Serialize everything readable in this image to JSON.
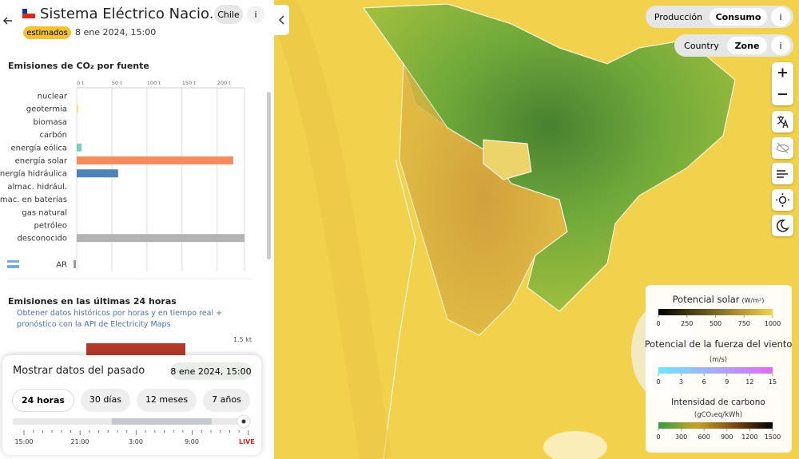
{
  "header": {
    "title": "Sistema Eléctrico Nacio...",
    "country": "Chile",
    "info": "i",
    "badge": "estimados",
    "datetime": "8 ene 2024, 15:00"
  },
  "emissions_chart": {
    "type": "bar",
    "orientation": "horizontal",
    "title": "Emisiones de CO₂ por fuente",
    "categories": [
      "nuclear",
      "geotermia",
      "biomasa",
      "carbón",
      "energía eólica",
      "energía solar",
      "energía hidráulica",
      "almac. hidrául.",
      "almac. en baterías",
      "gas natural",
      "petróleo",
      "desconocido",
      "AR"
    ],
    "values": [
      null,
      2,
      null,
      null,
      7,
      223,
      59,
      null,
      null,
      null,
      null,
      239,
      null
    ],
    "colors": [
      null,
      "#f2e55c",
      null,
      null,
      "#7ccfbe",
      "#f38c5e",
      "#4f82b7",
      null,
      null,
      null,
      null,
      "#b3b3b3",
      null
    ],
    "xlim": [
      0,
      239
    ],
    "xticks": [
      {
        "value": 0,
        "label": "0 t"
      },
      {
        "value": 50,
        "label": "50 t"
      },
      {
        "value": 100,
        "label": "100 t"
      },
      {
        "value": 150,
        "label": "150 t"
      },
      {
        "value": 200,
        "label": "200 t"
      }
    ],
    "grid": true
  },
  "history": {
    "title": "Emisiones en las últimas 24 horas",
    "link": "Obtener datos históricos por horas y en tiempo real + pronóstico con la API de Electricity Maps",
    "ytick": "1.5 kt"
  },
  "past_panel": {
    "title": "Mostrar datos del pasado",
    "datetime": "8 ene 2024, 15:00",
    "ranges": [
      "24 horas",
      "30 días",
      "12 meses",
      "7 años"
    ],
    "times": [
      "15:00",
      "21:00",
      "3:00",
      "9:00"
    ],
    "live": "LIVE"
  },
  "map_controls": {
    "mode": [
      "Producción",
      "Consumo"
    ],
    "scope": [
      "Country",
      "Zone"
    ]
  },
  "legends": [
    {
      "title": "Potencial solar",
      "unit": "(W/m²)",
      "ticks": [
        0,
        250,
        500,
        750,
        1000
      ],
      "colors": [
        "#000000",
        "#f7d24a"
      ]
    },
    {
      "title": "Potencial de la fuerza del viento",
      "unit": "(m/s)",
      "ticks": [
        0,
        3,
        6,
        9,
        12,
        15
      ],
      "colors": [
        "#6ee7ff",
        "#e06cf0"
      ]
    },
    {
      "title": "Intensidad de carbono",
      "unit": "(gCO₂eq/kWh)",
      "ticks": [
        0,
        300,
        600,
        900,
        1200,
        1500
      ],
      "colors": [
        "#2f9e44",
        "#c9a227",
        "#7a4a14",
        "#000000"
      ]
    }
  ]
}
